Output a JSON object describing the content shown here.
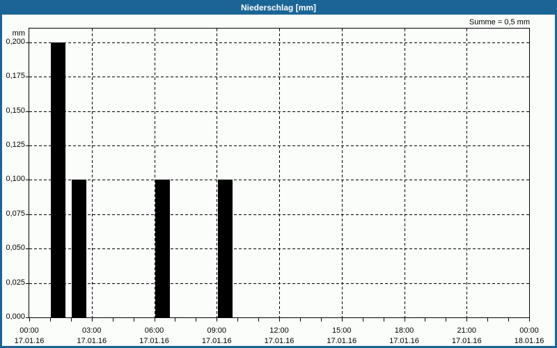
{
  "window": {
    "title": "Niederschlag [mm]",
    "summary_label": "Summe = 0,5 mm"
  },
  "colors": {
    "titlebar_bg": "#1B6596",
    "frame_border": "#1B6596",
    "content_bg": "#FAFDFA",
    "bar_fill": "#000000",
    "grid": "#000000",
    "title_text": "#FFFFFF",
    "axis_text": "#000000"
  },
  "chart_data": {
    "type": "bar",
    "title": "Niederschlag [mm]",
    "ylabel": "mm",
    "sum_annotation": "Summe = 0,5 mm",
    "ylim": [
      0,
      0.21
    ],
    "xlim_hours": [
      0,
      24
    ],
    "grid": "dashed",
    "legend": "none",
    "y_ticks": [
      {
        "value": 0.0,
        "label": "0,000"
      },
      {
        "value": 0.025,
        "label": "0,025"
      },
      {
        "value": 0.05,
        "label": "0,050"
      },
      {
        "value": 0.075,
        "label": "0,075"
      },
      {
        "value": 0.1,
        "label": "0,100"
      },
      {
        "value": 0.125,
        "label": "0,125"
      },
      {
        "value": 0.15,
        "label": "0,150"
      },
      {
        "value": 0.175,
        "label": "0,175"
      },
      {
        "value": 0.2,
        "label": "0,200"
      }
    ],
    "x_ticks": [
      {
        "hour": 0,
        "time": "00:00",
        "date": "17.01.16"
      },
      {
        "hour": 3,
        "time": "03:00",
        "date": "17.01.16"
      },
      {
        "hour": 6,
        "time": "06:00",
        "date": "17.01.16"
      },
      {
        "hour": 9,
        "time": "09:00",
        "date": "17.01.16"
      },
      {
        "hour": 12,
        "time": "12:00",
        "date": "17.01.16"
      },
      {
        "hour": 15,
        "time": "15:00",
        "date": "17.01.16"
      },
      {
        "hour": 18,
        "time": "18:00",
        "date": "17.01.16"
      },
      {
        "hour": 21,
        "time": "21:00",
        "date": "17.01.16"
      },
      {
        "hour": 24,
        "time": "00:00",
        "date": "18.01.16"
      }
    ],
    "minor_tick_interval_hours": 1,
    "bars": [
      {
        "start_hour": 1,
        "value": 0.2
      },
      {
        "start_hour": 2,
        "value": 0.1
      },
      {
        "start_hour": 6,
        "value": 0.1
      },
      {
        "start_hour": 9,
        "value": 0.1
      }
    ]
  }
}
